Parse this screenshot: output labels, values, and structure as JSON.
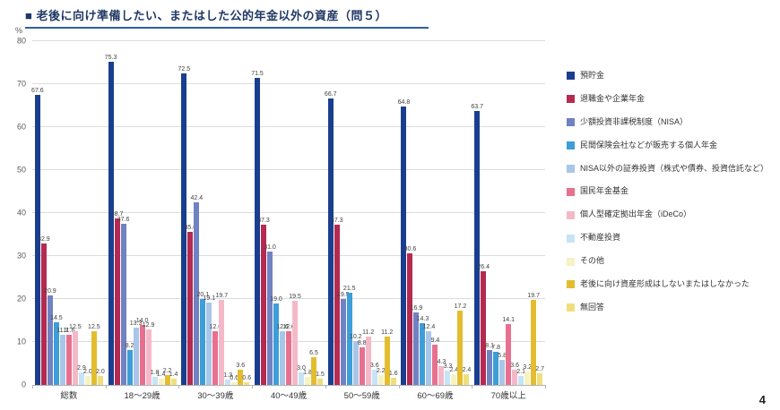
{
  "page": {
    "page_number": "4"
  },
  "chart": {
    "title": "■ 老後に向け準備したい、またはした公的年金以外の資産（問５）",
    "y_axis": {
      "unit": "%",
      "ticks": [
        0,
        10,
        20,
        30,
        40,
        50,
        60,
        70,
        80
      ]
    }
  },
  "chart_data": {
    "type": "bar",
    "title": "老後に向け準備したい、またはした公的年金以外の資産（問５）",
    "xlabel": "",
    "ylabel": "%",
    "ylim": [
      0,
      80
    ],
    "grid": true,
    "legend_position": "right",
    "categories": [
      "総数",
      "18～29歳",
      "30～39歳",
      "40～49歳",
      "50～59歳",
      "60～69歳",
      "70歳以上"
    ],
    "series": [
      {
        "name": "預貯金",
        "color": "#1a3e8f",
        "values": [
          67.6,
          75.3,
          72.5,
          71.5,
          66.7,
          64.8,
          63.7
        ]
      },
      {
        "name": "退職金や企業年金",
        "color": "#b52a50",
        "values": [
          32.9,
          38.7,
          35.6,
          37.3,
          37.3,
          30.6,
          26.4
        ]
      },
      {
        "name": "少額投資非課税制度（NISA）",
        "color": "#7082c2",
        "values": [
          20.9,
          37.6,
          42.4,
          31.0,
          19.9,
          16.9,
          8.1
        ]
      },
      {
        "name": "民間保険会社などが販売する個人年金",
        "color": "#3d9ed8",
        "values": [
          14.5,
          8.2,
          20.1,
          19.0,
          21.5,
          14.3,
          7.8
        ]
      },
      {
        "name": "NISA以外の証券投資（株式や債券、投資信託など）",
        "color": "#a9c6e8",
        "values": [
          11.7,
          13.3,
          19.1,
          12.6,
          10.2,
          12.4,
          5.8
        ]
      },
      {
        "name": "国民年金基金",
        "color": "#e8708f",
        "values": [
          11.6,
          14.0,
          12.6,
          12.6,
          8.8,
          9.4,
          14.1
        ]
      },
      {
        "name": "個人型確定拠出年金（iDeCo）",
        "color": "#f4b9c8",
        "values": [
          12.5,
          12.9,
          19.7,
          19.5,
          11.2,
          4.3,
          3.6
        ]
      },
      {
        "name": "不動産投資",
        "color": "#c6e4f5",
        "values": [
          2.9,
          1.8,
          1.3,
          3.0,
          3.6,
          3.3,
          2.1
        ]
      },
      {
        "name": "その他",
        "color": "#f6f3c3",
        "values": [
          2.0,
          1.4,
          0.6,
          1.8,
          2.2,
          2.4,
          3.2
        ]
      },
      {
        "name": "老後に向け資産形成はしないまたはしなかった",
        "color": "#e3bd2e",
        "values": [
          12.5,
          2.2,
          3.6,
          6.5,
          11.2,
          17.2,
          19.7
        ]
      },
      {
        "name": "無回答",
        "color": "#efdf7c",
        "values": [
          2.0,
          1.4,
          0.6,
          1.5,
          1.6,
          2.4,
          2.7
        ]
      }
    ]
  }
}
